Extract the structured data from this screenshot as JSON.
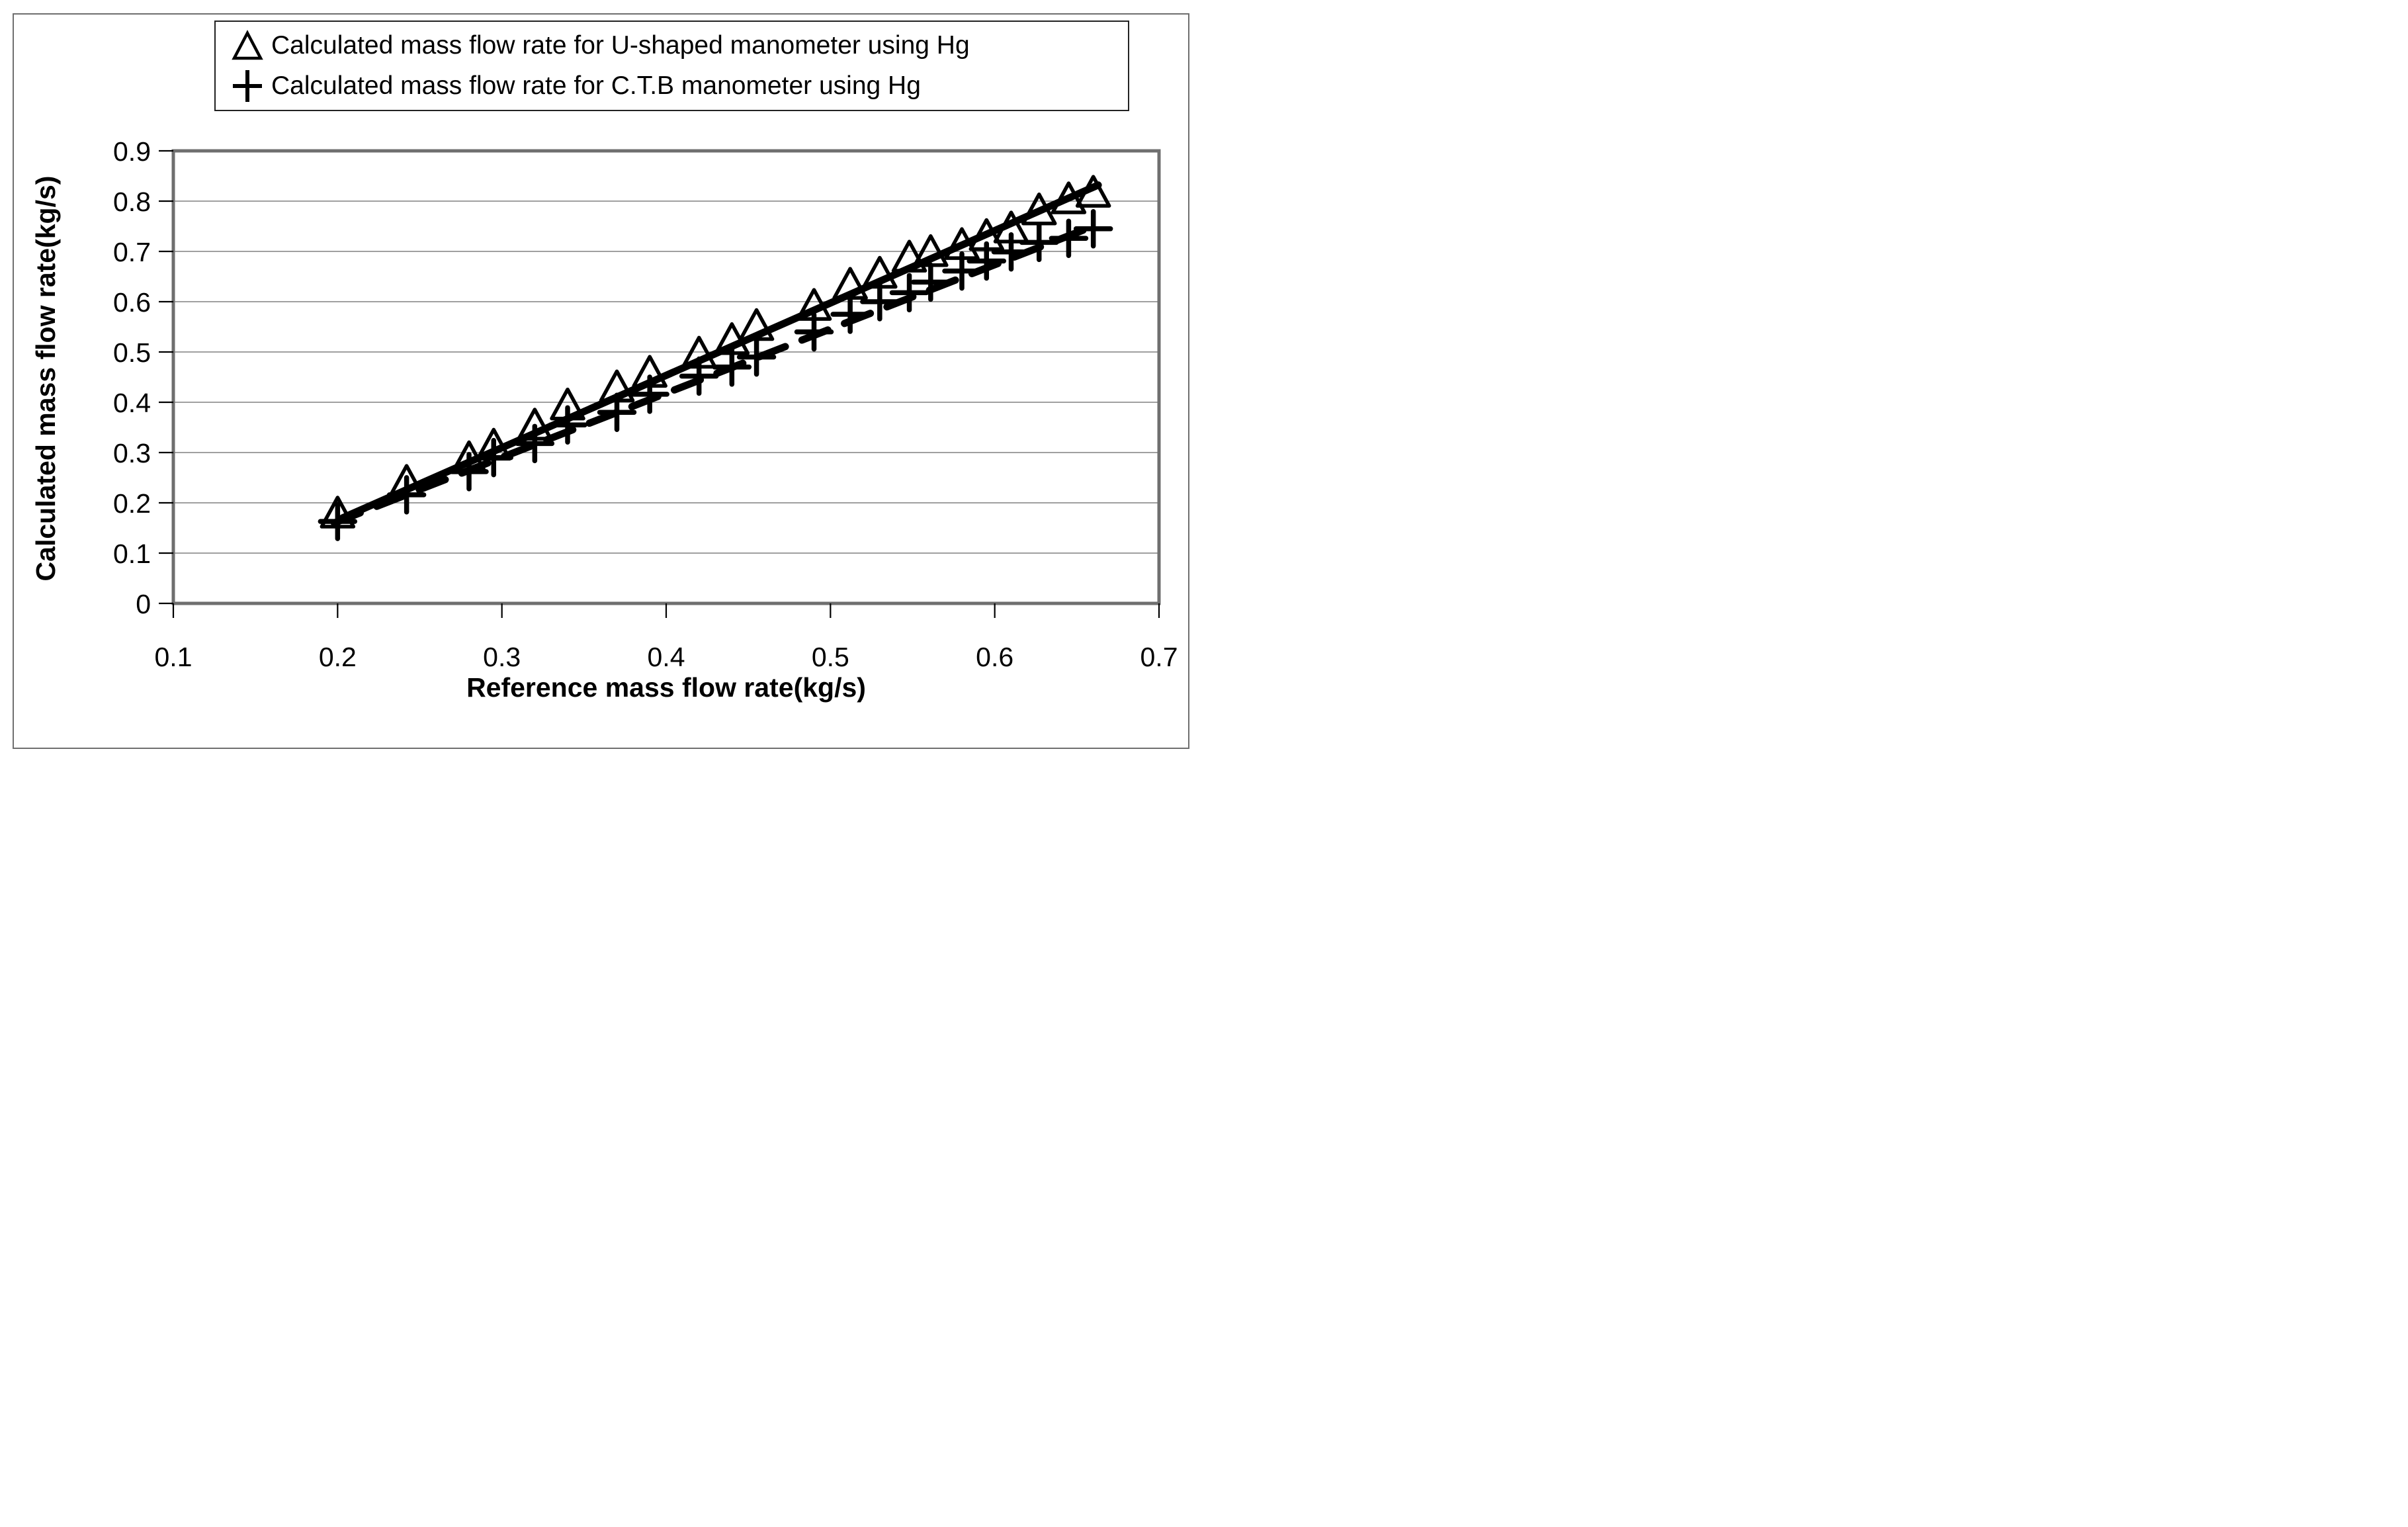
{
  "figure": {
    "background": "#ffffff",
    "border_color": "#6f6f6f"
  },
  "legend": {
    "border_color": "#222222",
    "items": [
      {
        "marker": "triangle-open",
        "label": "Calculated mass flow rate for U-shaped manometer using Hg"
      },
      {
        "marker": "plus",
        "label": "Calculated mass flow rate for C.T.B manometer using Hg"
      }
    ]
  },
  "chart_data": {
    "type": "line",
    "title": "",
    "xlabel": "Reference mass flow rate(kg/s)",
    "ylabel": "Calculated mass flow rate(kg/s)",
    "xlim": [
      0.1,
      0.7
    ],
    "ylim": [
      0,
      0.9
    ],
    "x_tick_values": [
      0.1,
      0.2,
      0.3,
      0.4,
      0.5,
      0.6,
      0.7
    ],
    "x_tick_labels": [
      "0.1",
      "0.2",
      "0.3",
      "0.4",
      "0.5",
      "0.6",
      "0.7"
    ],
    "y_tick_values": [
      0,
      0.1,
      0.2,
      0.3,
      0.4,
      0.5,
      0.6,
      0.7,
      0.8,
      0.9
    ],
    "y_tick_labels": [
      "0",
      "0.1",
      "0.2",
      "0.3",
      "0.4",
      "0.5",
      "0.6",
      "0.7",
      "0.8",
      "0.9"
    ],
    "grid": "horizontal",
    "grid_color": "#808080",
    "frame_color": "#6f6f6f",
    "legend_position": "top",
    "series": [
      {
        "name": "Calculated mass flow rate for U-shaped manometer using Hg",
        "marker": "triangle-open",
        "line_style": "solid",
        "color": "#000000",
        "x": [
          0.2,
          0.242,
          0.28,
          0.295,
          0.32,
          0.34,
          0.37,
          0.39,
          0.42,
          0.44,
          0.455,
          0.49,
          0.512,
          0.53,
          0.548,
          0.561,
          0.58,
          0.595,
          0.61,
          0.627,
          0.645,
          0.66
        ],
        "y": [
          0.175,
          0.238,
          0.285,
          0.31,
          0.35,
          0.39,
          0.426,
          0.455,
          0.493,
          0.52,
          0.548,
          0.588,
          0.63,
          0.652,
          0.684,
          0.695,
          0.709,
          0.727,
          0.742,
          0.778,
          0.8,
          0.813
        ],
        "trendline": {
          "x1": 0.203,
          "y1": 0.17,
          "x2": 0.663,
          "y2": 0.832
        }
      },
      {
        "name": "Calculated mass flow rate for C.T.B manometer using Hg",
        "marker": "plus",
        "line_style": "dashed",
        "color": "#000000",
        "x": [
          0.2,
          0.242,
          0.28,
          0.295,
          0.32,
          0.34,
          0.37,
          0.39,
          0.42,
          0.44,
          0.455,
          0.49,
          0.512,
          0.53,
          0.548,
          0.561,
          0.58,
          0.595,
          0.61,
          0.627,
          0.645,
          0.66
        ],
        "y": [
          0.163,
          0.216,
          0.262,
          0.29,
          0.318,
          0.355,
          0.38,
          0.416,
          0.452,
          0.47,
          0.49,
          0.54,
          0.575,
          0.6,
          0.618,
          0.639,
          0.661,
          0.681,
          0.699,
          0.718,
          0.726,
          0.745
        ],
        "trendline": {
          "x1": 0.198,
          "y1": 0.16,
          "x2": 0.663,
          "y2": 0.754
        }
      }
    ]
  }
}
